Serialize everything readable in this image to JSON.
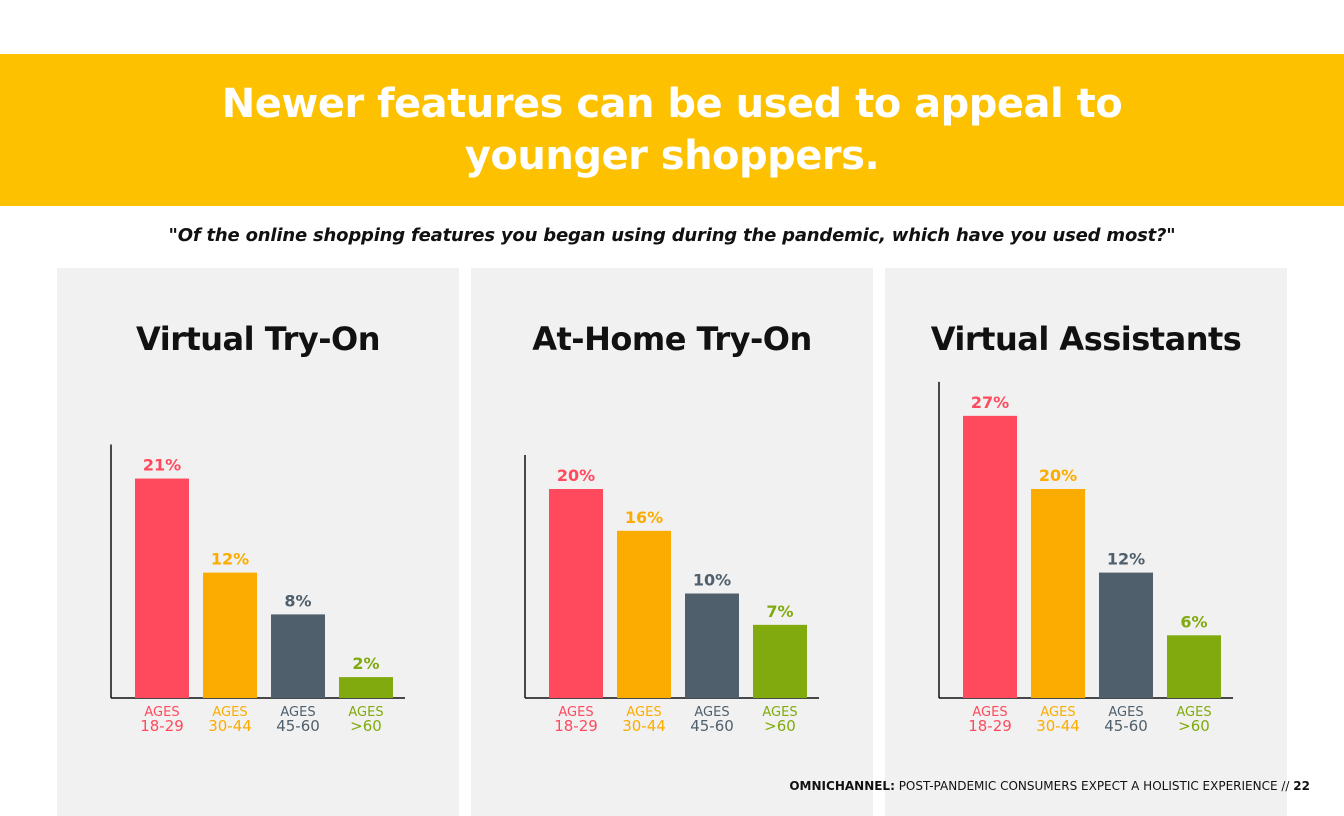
{
  "headline": "Newer features can be used to appeal to younger shoppers.",
  "question": "\"Of the online shopping features you began using during the pandemic, which have you used most?\"",
  "footer": {
    "bold": "OMNICHANNEL:",
    "text": " POST-PANDEMIC CONSUMERS EXPECT A HOLISTIC EXPERIENCE // ",
    "page": "22"
  },
  "colors": {
    "banner": "#fdc100",
    "age_18_29": "#ff4a5e",
    "age_30_44": "#fcac00",
    "age_45_60": "#4f5f6b",
    "age_60_plus": "#80aa0e",
    "panel_bg": "#f1f1f1"
  },
  "chart_data": [
    {
      "type": "bar",
      "title": "Virtual Try-On",
      "categories": [
        "AGES 18-29",
        "AGES 30-44",
        "AGES 45-60",
        "AGES >60"
      ],
      "values": [
        21,
        12,
        8,
        2
      ],
      "value_labels": [
        "21%",
        "12%",
        "8%",
        "2%"
      ],
      "unit": "%"
    },
    {
      "type": "bar",
      "title": "At-Home Try-On",
      "categories": [
        "AGES 18-29",
        "AGES 30-44",
        "AGES 45-60",
        "AGES >60"
      ],
      "values": [
        20,
        16,
        10,
        7
      ],
      "value_labels": [
        "20%",
        "16%",
        "10%",
        "7%"
      ],
      "unit": "%"
    },
    {
      "type": "bar",
      "title": "Virtual Assistants",
      "categories": [
        "AGES 18-29",
        "AGES 30-44",
        "AGES 45-60",
        "AGES >60"
      ],
      "values": [
        27,
        20,
        12,
        6
      ],
      "value_labels": [
        "27%",
        "20%",
        "12%",
        "6%"
      ],
      "unit": "%"
    }
  ]
}
